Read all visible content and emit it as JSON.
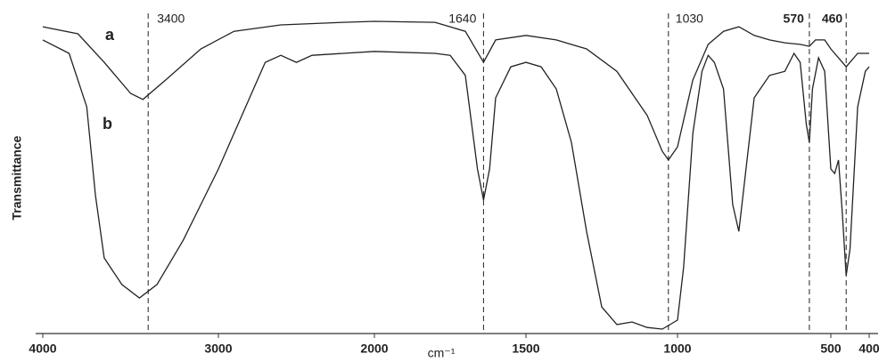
{
  "chart_data": {
    "type": "line",
    "y_label": "Transmittance",
    "x_label": "cm⁻¹",
    "xlim": [
      4000,
      400
    ],
    "xticks": [
      4000,
      3000,
      2000,
      1500,
      1000,
      500,
      400
    ],
    "ylim": [
      0,
      100
    ],
    "markers": [
      3400,
      1640,
      1030,
      570,
      460
    ],
    "series": [
      {
        "name": "a",
        "color": "#222222",
        "x": [
          4000,
          3800,
          3650,
          3500,
          3430,
          3300,
          3100,
          2900,
          2600,
          2200,
          2000,
          1800,
          1700,
          1640,
          1600,
          1500,
          1400,
          1300,
          1200,
          1100,
          1050,
          1030,
          1000,
          950,
          900,
          850,
          800,
          750,
          700,
          650,
          600,
          570,
          550,
          520,
          500,
          470,
          460,
          430,
          400
        ],
        "values": [
          95.8,
          93.6,
          84.7,
          75,
          73.1,
          79.2,
          88.9,
          94.4,
          96.4,
          97.2,
          97.5,
          97.2,
          94.4,
          84.7,
          91.7,
          93.1,
          91.7,
          88.9,
          81.9,
          68.1,
          56.9,
          54.2,
          58.3,
          79.2,
          90.3,
          94.4,
          95.8,
          93.1,
          91.7,
          90.8,
          90.3,
          89.7,
          91.7,
          91.7,
          88.9,
          84.7,
          83.3,
          87.5,
          87.5
        ]
      },
      {
        "name": "b",
        "color": "#222222",
        "x": [
          4000,
          3850,
          3750,
          3700,
          3650,
          3550,
          3450,
          3350,
          3200,
          3000,
          2800,
          2700,
          2600,
          2500,
          2400,
          2200,
          2000,
          1800,
          1750,
          1700,
          1660,
          1640,
          1620,
          1600,
          1550,
          1500,
          1450,
          1400,
          1350,
          1300,
          1250,
          1200,
          1150,
          1100,
          1050,
          1000,
          980,
          950,
          920,
          900,
          880,
          850,
          820,
          800,
          780,
          750,
          700,
          650,
          620,
          600,
          580,
          570,
          560,
          540,
          520,
          500,
          490,
          480,
          470,
          460,
          450,
          430,
          410,
          400
        ],
        "values": [
          91.7,
          87.5,
          70.8,
          43.1,
          23.6,
          15.3,
          11.1,
          15.3,
          29.2,
          51.4,
          73.6,
          84.7,
          86.9,
          84.7,
          86.9,
          87.5,
          88.1,
          87.5,
          86.9,
          80.6,
          51.4,
          41.7,
          51.4,
          73.6,
          83.3,
          84.7,
          83.3,
          76.4,
          59.7,
          31.9,
          8.3,
          2.8,
          3.6,
          1.9,
          1.4,
          4.2,
          20.8,
          62.5,
          81.9,
          86.9,
          84.7,
          76.4,
          40.3,
          31.9,
          48.6,
          73.6,
          80.6,
          81.9,
          87.5,
          84.7,
          65.3,
          59.7,
          76.4,
          86.1,
          81.9,
          51.4,
          50,
          54.2,
          37.5,
          18.1,
          26.4,
          70.8,
          81.9,
          83.3
        ]
      }
    ]
  }
}
